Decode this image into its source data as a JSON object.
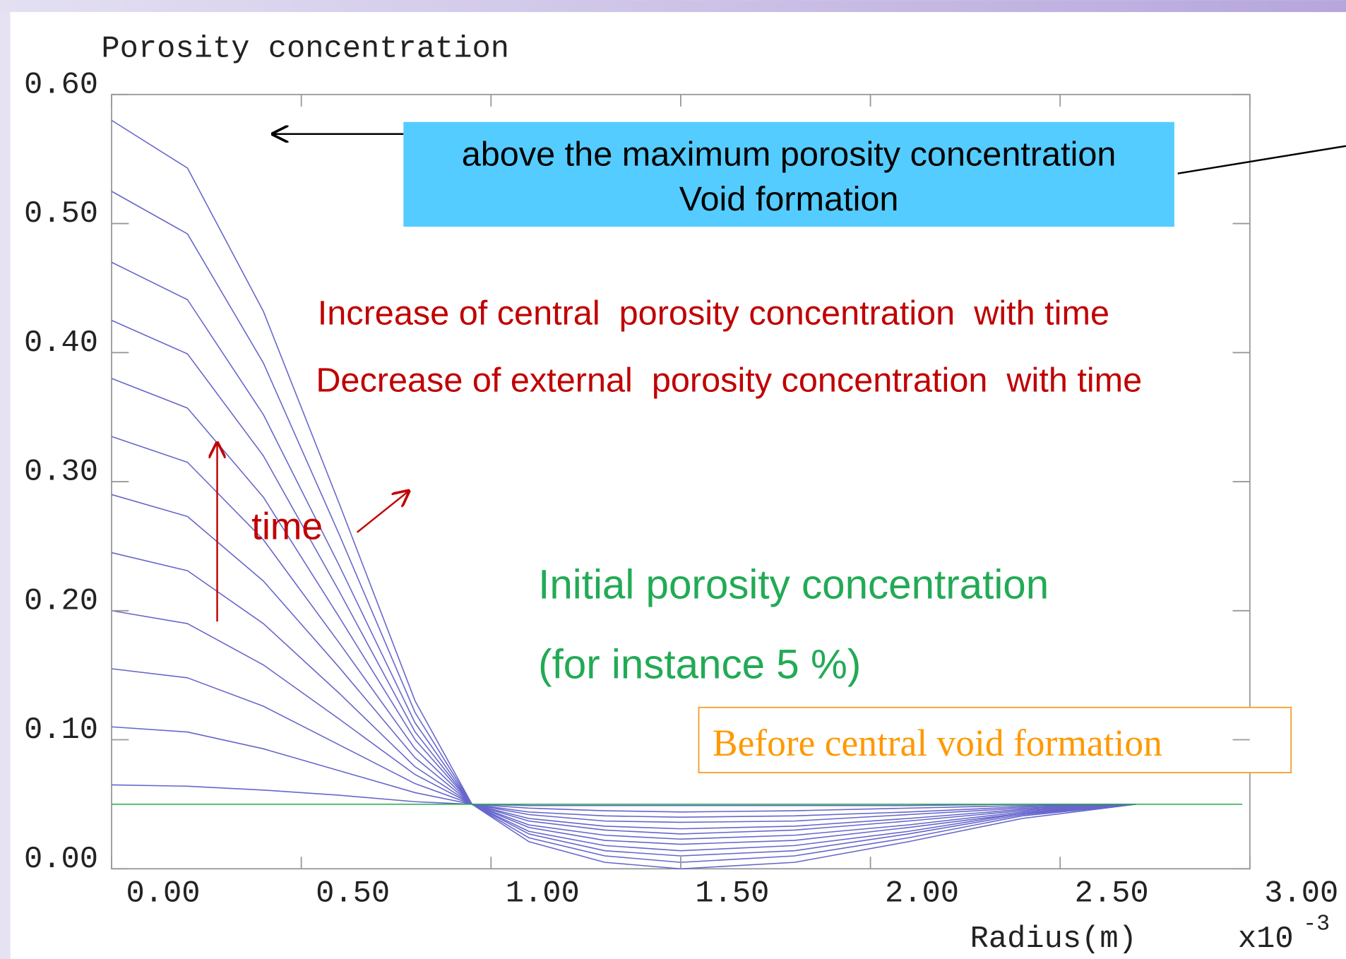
{
  "chart_data": {
    "type": "line",
    "ylabel": "Porosity concentration",
    "xlabel": "Radius(m)",
    "x_scale_label": "x10",
    "x_scale_exponent": "-3",
    "xlim": [
      0,
      3
    ],
    "ylim": [
      0,
      0.6
    ],
    "xticks": [
      {
        "value": 0,
        "label": "0.00"
      },
      {
        "value": 0.5,
        "label": "0.50"
      },
      {
        "value": 1,
        "label": "1.00"
      },
      {
        "value": 1.5,
        "label": "1.50"
      },
      {
        "value": 2,
        "label": "2.00"
      },
      {
        "value": 2.5,
        "label": "2.50"
      },
      {
        "value": 3,
        "label": "3.00"
      }
    ],
    "yticks": [
      {
        "value": 0,
        "label": "0.00"
      },
      {
        "value": 0.1,
        "label": "0.10"
      },
      {
        "value": 0.2,
        "label": "0.20"
      },
      {
        "value": 0.3,
        "label": "0.30"
      },
      {
        "value": 0.4,
        "label": "0.40"
      },
      {
        "value": 0.5,
        "label": "0.50"
      },
      {
        "value": 0.6,
        "label": "0.60"
      }
    ],
    "x": [
      0,
      0.2,
      0.4,
      0.6,
      0.8,
      0.95,
      1.1,
      1.3,
      1.5,
      1.8,
      2.1,
      2.4,
      2.7
    ],
    "series": [
      {
        "color": "#6666cc",
        "values": [
          0.065,
          0.064,
          0.061,
          0.057,
          0.052,
          0.05,
          0.049,
          0.049,
          0.049,
          0.049,
          0.049,
          0.05,
          0.05
        ]
      },
      {
        "color": "#6666cc",
        "values": [
          0.11,
          0.106,
          0.093,
          0.076,
          0.059,
          0.05,
          0.047,
          0.045,
          0.044,
          0.045,
          0.047,
          0.049,
          0.05
        ]
      },
      {
        "color": "#6666cc",
        "values": [
          0.155,
          0.148,
          0.126,
          0.096,
          0.066,
          0.05,
          0.044,
          0.041,
          0.04,
          0.041,
          0.044,
          0.048,
          0.05
        ]
      },
      {
        "color": "#6666cc",
        "values": [
          0.2,
          0.19,
          0.158,
          0.116,
          0.073,
          0.05,
          0.042,
          0.037,
          0.036,
          0.037,
          0.042,
          0.047,
          0.05
        ]
      },
      {
        "color": "#6666cc",
        "values": [
          0.245,
          0.231,
          0.19,
          0.136,
          0.079,
          0.05,
          0.039,
          0.033,
          0.031,
          0.033,
          0.039,
          0.046,
          0.05
        ]
      },
      {
        "color": "#6666cc",
        "values": [
          0.29,
          0.273,
          0.223,
          0.156,
          0.086,
          0.05,
          0.037,
          0.03,
          0.027,
          0.03,
          0.037,
          0.045,
          0.05
        ]
      },
      {
        "color": "#6666cc",
        "values": [
          0.335,
          0.315,
          0.255,
          0.175,
          0.093,
          0.05,
          0.034,
          0.026,
          0.023,
          0.026,
          0.034,
          0.044,
          0.05
        ]
      },
      {
        "color": "#6666cc",
        "values": [
          0.38,
          0.357,
          0.288,
          0.195,
          0.1,
          0.05,
          0.032,
          0.022,
          0.019,
          0.022,
          0.032,
          0.043,
          0.05
        ]
      },
      {
        "color": "#6666cc",
        "values": [
          0.425,
          0.399,
          0.32,
          0.215,
          0.106,
          0.05,
          0.029,
          0.018,
          0.014,
          0.018,
          0.029,
          0.043,
          0.05
        ]
      },
      {
        "color": "#6666cc",
        "values": [
          0.47,
          0.441,
          0.352,
          0.235,
          0.113,
          0.05,
          0.027,
          0.014,
          0.01,
          0.014,
          0.027,
          0.042,
          0.05
        ]
      },
      {
        "color": "#6666cc",
        "values": [
          0.525,
          0.492,
          0.392,
          0.259,
          0.121,
          0.05,
          0.024,
          0.01,
          0.005,
          0.01,
          0.024,
          0.041,
          0.05
        ]
      },
      {
        "color": "#6666cc",
        "values": [
          0.58,
          0.543,
          0.432,
          0.283,
          0.13,
          0.05,
          0.021,
          0.005,
          0.0,
          0.005,
          0.021,
          0.039,
          0.05
        ]
      },
      {
        "color": "#22aa44",
        "x": [
          0,
          2.98
        ],
        "values": [
          0.05,
          0.05
        ]
      }
    ],
    "annotations": {
      "void_box": [
        "above the maximum porosity concentration",
        "Void formation"
      ],
      "increase": "Increase of central  porosity concentration  with time",
      "decrease": "Decrease of external  porosity concentration  with time",
      "time": "time",
      "initial": [
        "Initial porosity concentration",
        "(for instance 5 %)"
      ],
      "before": "Before central void formation"
    }
  }
}
